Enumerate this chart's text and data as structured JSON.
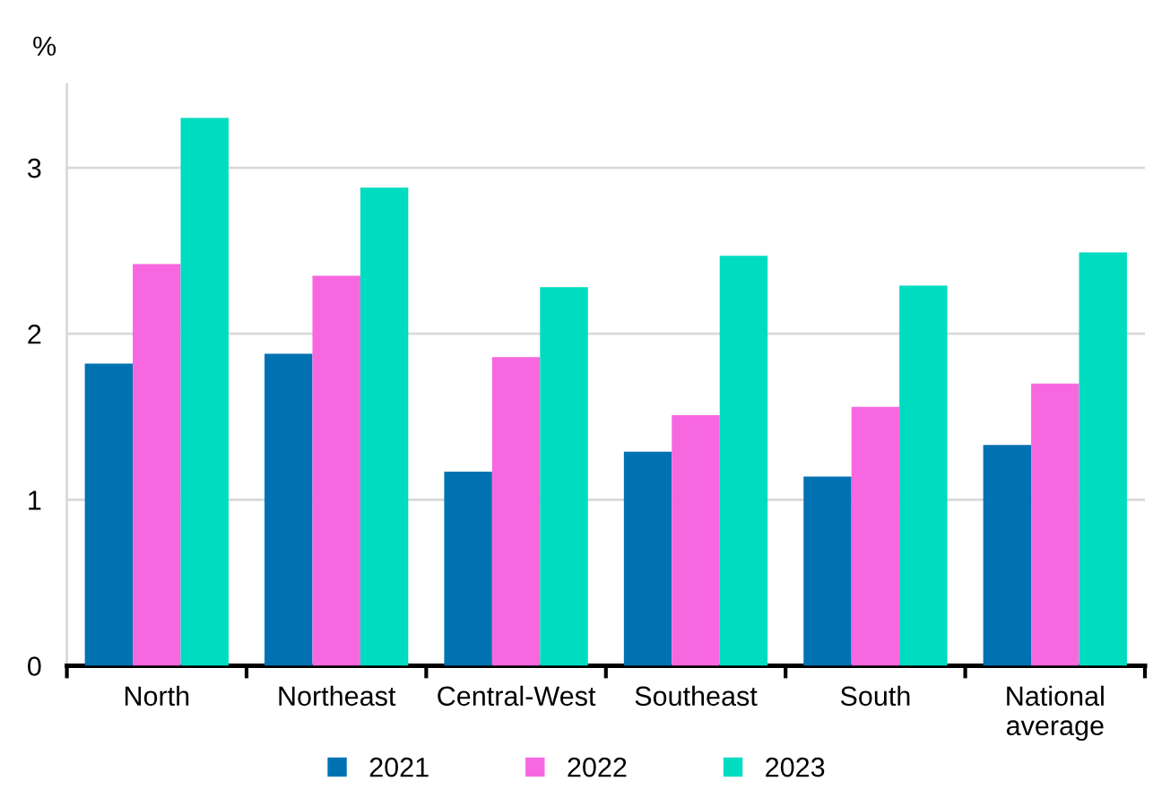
{
  "chart_data": {
    "type": "bar",
    "ylabel": "%",
    "categories": [
      "North",
      "Northeast",
      "Central-West",
      "Southeast",
      "South",
      "National\naverage"
    ],
    "series": [
      {
        "name": "2021",
        "color": "#0072b2",
        "values": [
          1.82,
          1.88,
          1.17,
          1.29,
          1.14,
          1.33
        ]
      },
      {
        "name": "2022",
        "color": "#f768e0",
        "values": [
          2.42,
          2.35,
          1.86,
          1.51,
          1.56,
          1.7
        ]
      },
      {
        "name": "2023",
        "color": "#00dcc0",
        "values": [
          3.3,
          2.88,
          2.28,
          2.47,
          2.29,
          2.49
        ]
      }
    ],
    "ylim": [
      0,
      3.5
    ],
    "yticks": [
      0,
      1,
      2,
      3
    ],
    "grid": "y",
    "legend": "bottom"
  }
}
